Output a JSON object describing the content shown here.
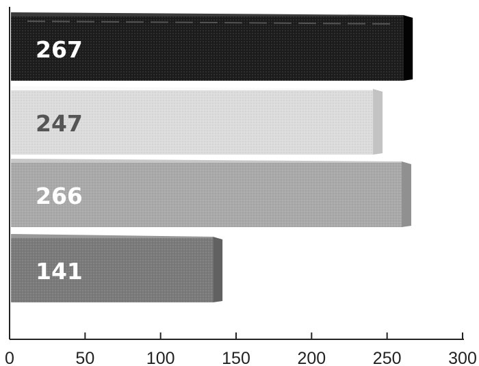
{
  "chart_data": {
    "type": "bar",
    "orientation": "horizontal",
    "values": [
      267,
      247,
      266,
      141
    ],
    "data_labels": [
      "267",
      "247",
      "266",
      "141"
    ],
    "bar_colors": [
      "#1c1c1c",
      "#dcdcdc",
      "#a9a9a9",
      "#7a7a7a"
    ],
    "label_colors": [
      "#ffffff",
      "#555555",
      "#ffffff",
      "#ffffff"
    ],
    "x_ticks": [
      "0",
      "50",
      "100",
      "150",
      "200",
      "250",
      "300"
    ],
    "tick_values": [
      0,
      50,
      100,
      150,
      200,
      250,
      300
    ],
    "xlim": [
      0,
      300
    ],
    "grid": false,
    "legend": false,
    "title": "",
    "xlabel": "",
    "ylabel": ""
  }
}
